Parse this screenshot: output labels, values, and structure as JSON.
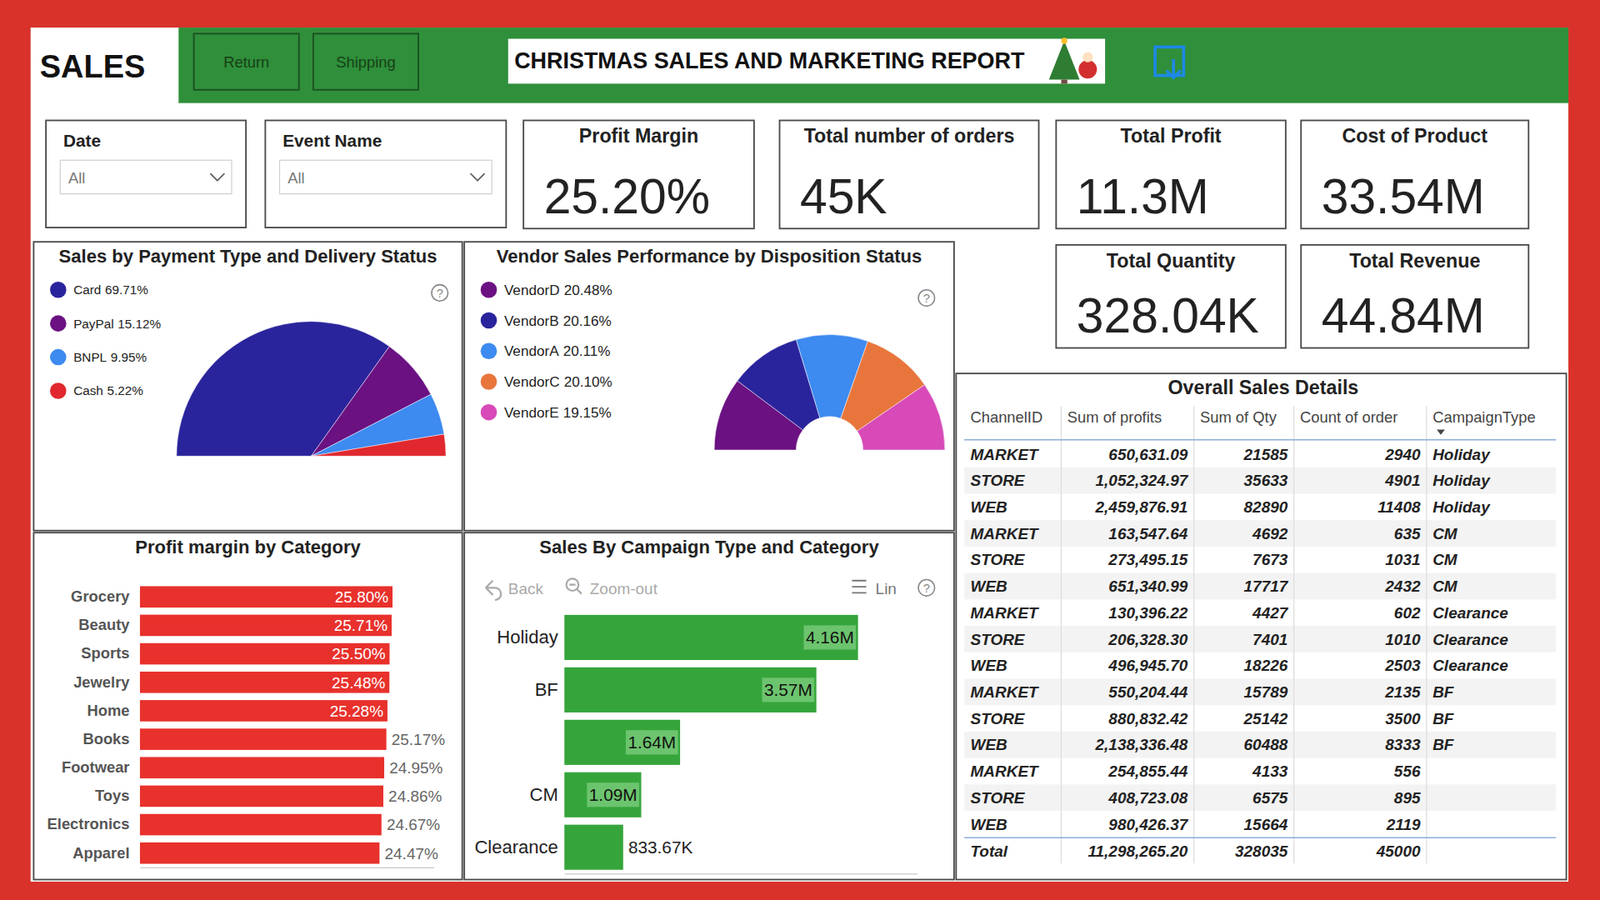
{
  "header": {
    "page": "SALES",
    "tabs": [
      "Return",
      "Shipping"
    ],
    "title": "CHRISTMAS SALES AND MARKETING REPORT"
  },
  "filters": [
    {
      "label": "Date",
      "value": "All"
    },
    {
      "label": "Event Name",
      "value": "All"
    }
  ],
  "kpis": [
    {
      "title": "Profit Margin",
      "value": "25.20%"
    },
    {
      "title": "Total number of orders",
      "value": "45K"
    },
    {
      "title": "Total Profit",
      "value": "11.3M"
    },
    {
      "title": "Cost of Product",
      "value": "33.54M"
    },
    {
      "title": "Total Quantity",
      "value": "328.04K"
    },
    {
      "title": "Total Revenue",
      "value": "44.84M"
    }
  ],
  "ui": {
    "help": "?",
    "toolbar": [
      "Back",
      "Zoom-out",
      "Lin"
    ]
  },
  "chart_data": [
    {
      "type": "pie",
      "title": "Sales by Payment Type and Delivery Status",
      "categories": [
        "Card",
        "PayPal",
        "BNPL",
        "Cash"
      ],
      "values": [
        69.71,
        15.12,
        9.95,
        5.22
      ],
      "value_labels": [
        "69.71%",
        "15.12%",
        "9.95%",
        "5.22%"
      ],
      "colors": [
        "#2a249c",
        "#6b1182",
        "#3d8af0",
        "#e0282e"
      ],
      "legend": "top-left"
    },
    {
      "type": "donut",
      "title": "Vendor Sales Performance by Disposition Status",
      "categories": [
        "VendorD",
        "VendorB",
        "VendorA",
        "VendorC",
        "VendorE"
      ],
      "values": [
        20.48,
        20.16,
        20.11,
        20.1,
        19.15
      ],
      "value_labels": [
        "20.48%",
        "20.16%",
        "20.11%",
        "20.10%",
        "19.15%"
      ],
      "colors": [
        "#6b1182",
        "#2a249c",
        "#3d8af0",
        "#e8763c",
        "#d74ab8"
      ],
      "legend": "top-left"
    },
    {
      "type": "bar",
      "orientation": "horizontal",
      "title": "Profit margin by Category",
      "categories": [
        "Grocery",
        "Beauty",
        "Sports",
        "Jewelry",
        "Home",
        "Books",
        "Footwear",
        "Toys",
        "Electronics",
        "Apparel"
      ],
      "values": [
        25.8,
        25.71,
        25.5,
        25.48,
        25.28,
        25.17,
        24.95,
        24.86,
        24.67,
        24.47
      ],
      "value_labels": [
        "25.80%",
        "25.71%",
        "25.50%",
        "25.48%",
        "25.28%",
        "25.17%",
        "24.95%",
        "24.86%",
        "24.67%",
        "24.47%"
      ],
      "color": "#e8312c",
      "xlim": [
        0,
        30
      ],
      "data_labels": true,
      "tick_labels": "y"
    },
    {
      "type": "bar",
      "orientation": "horizontal",
      "title": "Sales By Campaign Type and Category",
      "categories": [
        "Holiday",
        "BF",
        null,
        "CM",
        "Clearance"
      ],
      "values": [
        4160000,
        3570000,
        1640000,
        1090000,
        833670
      ],
      "value_labels": [
        "4.16M",
        "3.57M",
        "1.64M",
        "1.09M",
        "833.67K"
      ],
      "color": "#35a53b",
      "xlim": [
        0,
        5000000
      ],
      "data_labels": true,
      "tick_labels": "y"
    }
  ],
  "table": {
    "title": "Overall Sales Details",
    "columns": [
      "ChannelID",
      "Sum of profits",
      "Sum of Qty",
      "Count of order",
      "CampaignType"
    ],
    "rows": [
      [
        "MARKET",
        "650,631.09",
        "21585",
        "2940",
        "Holiday"
      ],
      [
        "STORE",
        "1,052,324.97",
        "35633",
        "4901",
        "Holiday"
      ],
      [
        "WEB",
        "2,459,876.91",
        "82890",
        "11408",
        "Holiday"
      ],
      [
        "MARKET",
        "163,547.64",
        "4692",
        "635",
        "CM"
      ],
      [
        "STORE",
        "273,495.15",
        "7673",
        "1031",
        "CM"
      ],
      [
        "WEB",
        "651,340.99",
        "17717",
        "2432",
        "CM"
      ],
      [
        "MARKET",
        "130,396.22",
        "4427",
        "602",
        "Clearance"
      ],
      [
        "STORE",
        "206,328.30",
        "7401",
        "1010",
        "Clearance"
      ],
      [
        "WEB",
        "496,945.70",
        "18226",
        "2503",
        "Clearance"
      ],
      [
        "MARKET",
        "550,204.44",
        "15789",
        "2135",
        "BF"
      ],
      [
        "STORE",
        "880,832.42",
        "25142",
        "3500",
        "BF"
      ],
      [
        "WEB",
        "2,138,336.48",
        "60488",
        "8333",
        "BF"
      ],
      [
        "MARKET",
        "254,855.44",
        "4133",
        "556",
        null
      ],
      [
        "STORE",
        "408,723.08",
        "6575",
        "895",
        null
      ],
      [
        "WEB",
        "980,426.37",
        "15664",
        "2119",
        null
      ]
    ],
    "total": [
      "Total",
      "11,298,265.20",
      "328035",
      "45000",
      null
    ]
  }
}
